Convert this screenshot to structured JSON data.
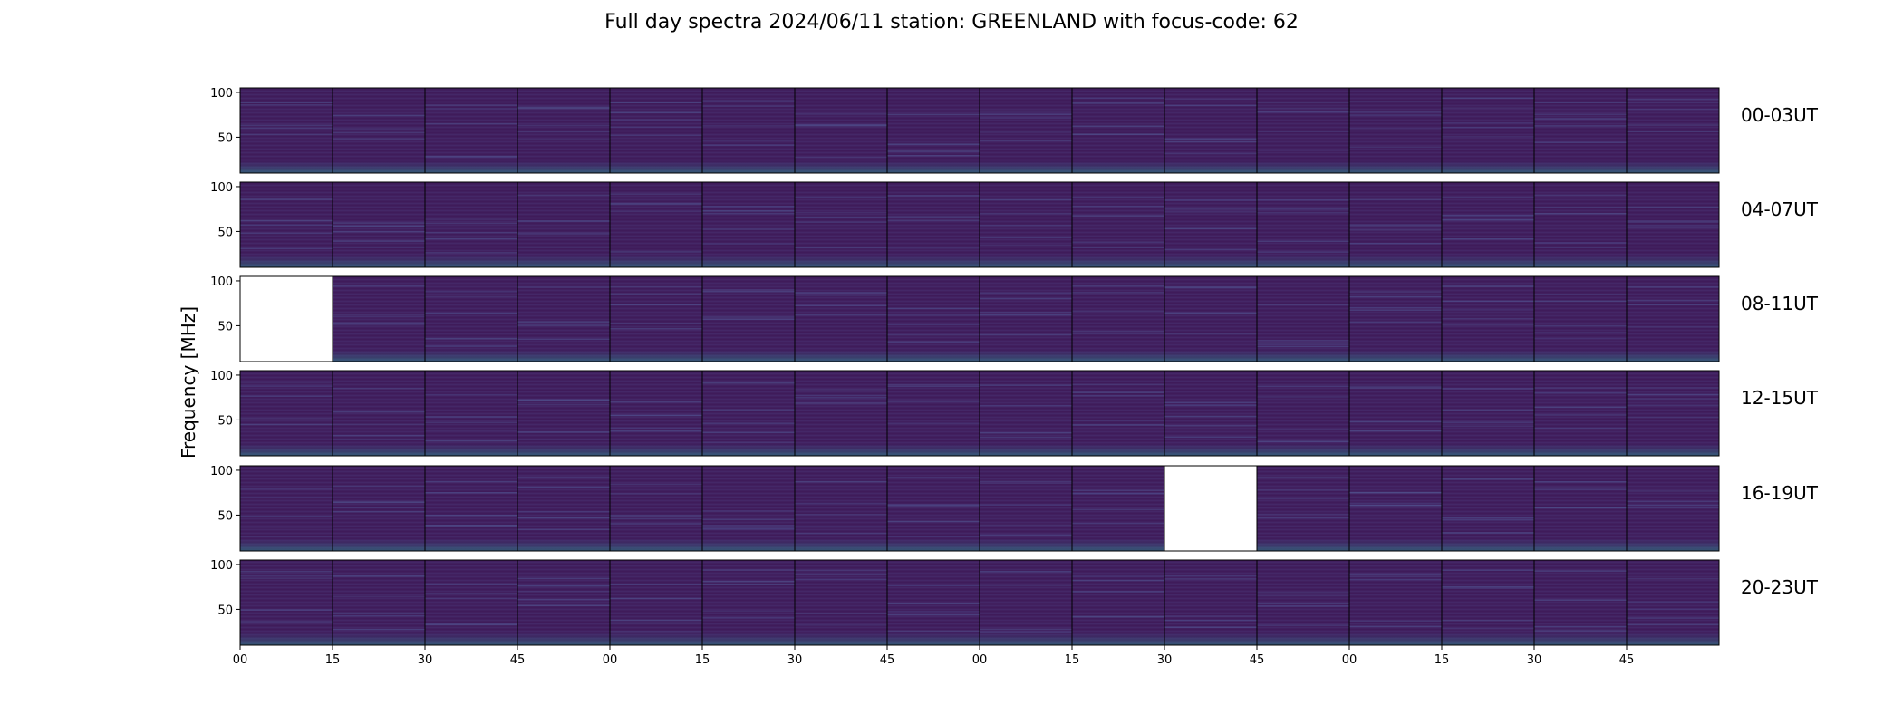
{
  "figure": {
    "title": "Full day spectra 2024/06/11 station: GREENLAND with focus-code: 62",
    "ylabel": "Frequency [MHz]"
  },
  "chart_data": {
    "type": "heatmap",
    "title": "Full day spectra 2024/06/11 station: GREENLAND with focus-code: 62",
    "ylabel": "Frequency [MHz]",
    "yticks": [
      50,
      100
    ],
    "ylim": [
      10,
      105
    ],
    "xticks": [
      "00",
      "15",
      "30",
      "45",
      "00",
      "15",
      "30",
      "45",
      "00",
      "15",
      "30",
      "45",
      "00",
      "15",
      "30",
      "45"
    ],
    "colormap": "viridis",
    "panels_per_row": 16,
    "rows": [
      {
        "label": "00-03UT",
        "missing_panels": []
      },
      {
        "label": "04-07UT",
        "missing_panels": []
      },
      {
        "label": "08-11UT",
        "missing_panels": [
          0
        ]
      },
      {
        "label": "12-15UT",
        "missing_panels": []
      },
      {
        "label": "16-19UT",
        "missing_panels": [
          10
        ]
      },
      {
        "label": "20-23UT",
        "missing_panels": []
      }
    ]
  }
}
